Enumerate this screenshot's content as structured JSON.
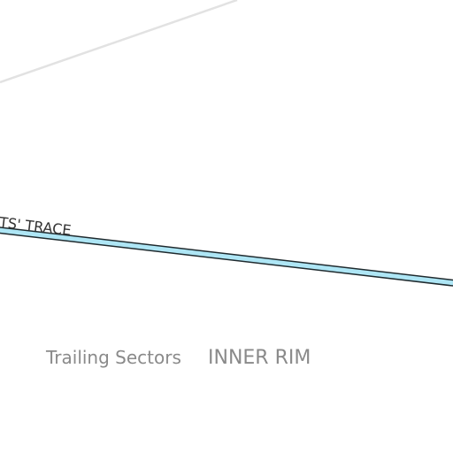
{
  "map": {
    "road_label": "ITS' TRACE",
    "place_labels": {
      "trailing_sectors": "Trailing Sectors",
      "inner_rim": "INNER RIM"
    },
    "colors": {
      "background": "#ffffff",
      "road_fill": "#aee6f5",
      "road_casing": "#1f2a2e",
      "minor_path": "#e2e2e2",
      "label_gray": "#8a8a8a",
      "road_label": "#333333"
    }
  }
}
